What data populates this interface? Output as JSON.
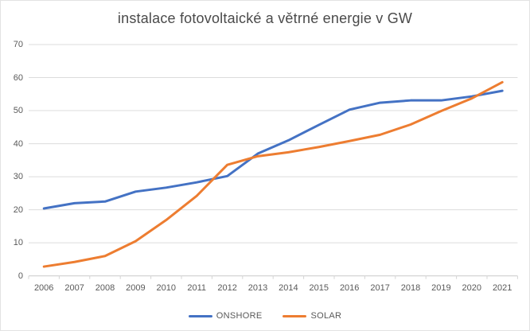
{
  "window": {
    "background": "#ffffff",
    "border_color": "#e3e3e3"
  },
  "chart_data": {
    "type": "line",
    "title": "instalace fotovoltaické a větrné energie v GW",
    "xlabel": "",
    "ylabel": "",
    "x": [
      2006,
      2007,
      2008,
      2009,
      2010,
      2011,
      2012,
      2013,
      2014,
      2015,
      2016,
      2017,
      2018,
      2019,
      2020,
      2021
    ],
    "series": [
      {
        "name": "ONSHORE",
        "color": "#4472C4",
        "values": [
          20.4,
          22.0,
          22.5,
          25.5,
          26.7,
          28.3,
          30.2,
          37.0,
          41.0,
          45.7,
          50.3,
          52.4,
          53.1,
          53.1,
          54.3,
          56.0
        ]
      },
      {
        "name": "SOLAR",
        "color": "#ED7D31",
        "values": [
          2.8,
          4.2,
          6.0,
          10.5,
          16.9,
          24.2,
          33.6,
          36.2,
          37.4,
          39.0,
          40.8,
          42.7,
          45.8,
          49.9,
          53.7,
          58.6
        ]
      }
    ],
    "ylim": [
      0,
      70
    ],
    "yticks": [
      0,
      10,
      20,
      30,
      40,
      50,
      60,
      70
    ],
    "grid": true,
    "legend_position": "bottom",
    "colors": {
      "gridline": "#dcdcdc",
      "axis_line": "#c9c9c9",
      "tick_mark": "#d4d4d4",
      "tick_text": "#595959",
      "title_text": "#4a4a4a"
    }
  }
}
